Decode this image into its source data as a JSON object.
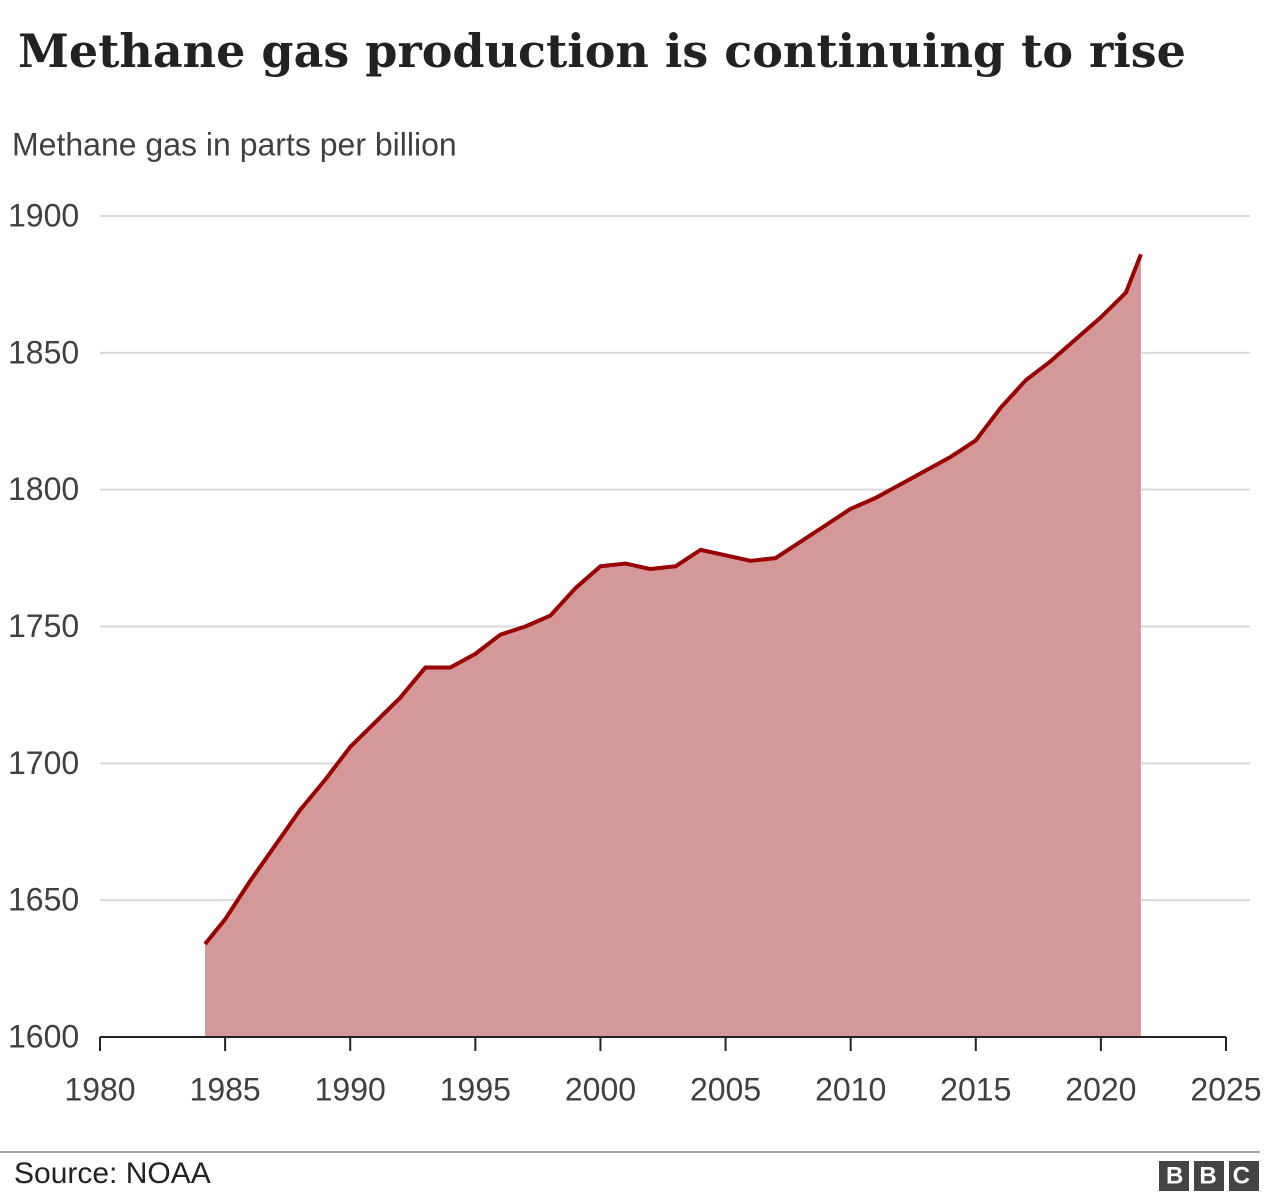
{
  "chart_data": {
    "type": "area",
    "title": "Methane gas production is continuing to rise",
    "subtitle": "Methane gas in parts per billion",
    "source": "Source: NOAA",
    "logo": "BBC",
    "color": "#990000",
    "fill": "#d49899",
    "grid": true,
    "x": [
      1984.2,
      1985,
      1986,
      1987,
      1988,
      1989,
      1990,
      1991,
      1992,
      1993,
      1994,
      1995,
      1996,
      1997,
      1998,
      1999,
      2000,
      2001,
      2002,
      2003,
      2004,
      2005,
      2006,
      2007,
      2008,
      2009,
      2010,
      2011,
      2012,
      2013,
      2014,
      2015,
      2016,
      2017,
      2018,
      2019,
      2020,
      2021,
      2021.6
    ],
    "values": [
      1634,
      1643,
      1657,
      1670,
      1683,
      1694,
      1706,
      1715,
      1724,
      1735,
      1735,
      1740,
      1747,
      1750,
      1754,
      1764,
      1772,
      1773,
      1771,
      1772,
      1778,
      1776,
      1774,
      1775,
      1781,
      1787,
      1793,
      1797,
      1802,
      1807,
      1812,
      1818,
      1830,
      1840,
      1847,
      1855,
      1863,
      1872,
      1886
    ],
    "xlim": [
      1980,
      2025
    ],
    "xticks": [
      1980,
      1985,
      1990,
      1995,
      2000,
      2005,
      2010,
      2015,
      2020,
      2025
    ],
    "ylim": [
      1600,
      1900
    ],
    "yticks": [
      1600,
      1650,
      1700,
      1750,
      1800,
      1850,
      1900
    ]
  }
}
